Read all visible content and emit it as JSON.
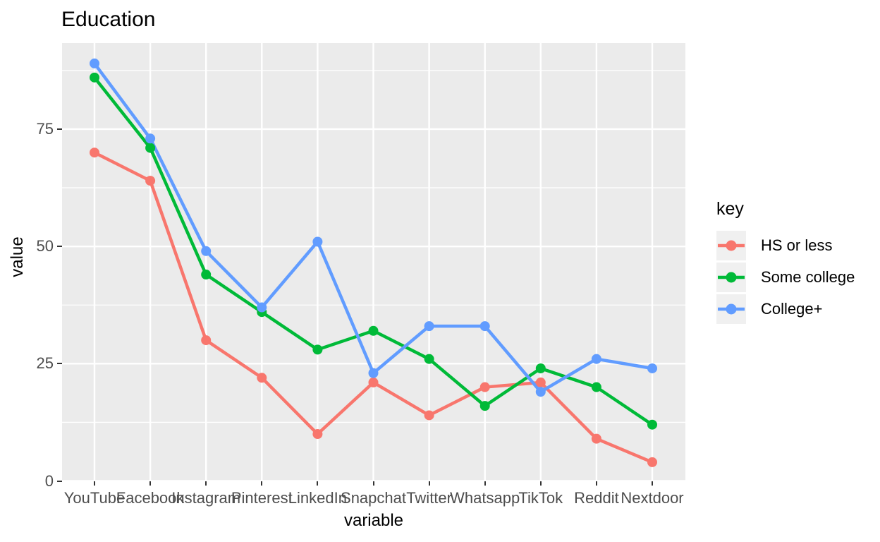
{
  "chart_data": {
    "type": "line",
    "title": "Education",
    "xlabel": "variable",
    "ylabel": "value",
    "legend_title": "key",
    "legend_position": "right",
    "categories": [
      "YouTube",
      "Facebook",
      "Instagram",
      "Pinterest",
      "LinkedIn",
      "Snapchat",
      "Twitter",
      "Whatsapp",
      "TikTok",
      "Reddit",
      "Nextdoor"
    ],
    "series": [
      {
        "name": "HS or less",
        "color": "#F8766D",
        "values": [
          70,
          64,
          30,
          22,
          10,
          21,
          14,
          20,
          21,
          9,
          4
        ]
      },
      {
        "name": "Some college",
        "color": "#00BA38",
        "values": [
          86,
          71,
          44,
          36,
          28,
          32,
          26,
          16,
          24,
          20,
          12
        ]
      },
      {
        "name": "College+",
        "color": "#619CFF",
        "values": [
          89,
          73,
          49,
          37,
          51,
          23,
          33,
          33,
          19,
          26,
          24
        ]
      }
    ],
    "y_ticks": [
      0,
      25,
      50,
      75
    ],
    "y_minor_gridlines": [
      12.5,
      37.5,
      62.5,
      87.5
    ],
    "ylim": [
      -0.9,
      93.4
    ],
    "grid": true,
    "theme": {
      "background": "#FFFFFF",
      "panel_bg": "#EBEBEB",
      "grid_color": "#FFFFFF",
      "tick_color": "#333333",
      "tick_label_color": "#4D4D4D",
      "axis_title_color": "#000000",
      "legend_key_bg": "#F0F0F0"
    }
  }
}
